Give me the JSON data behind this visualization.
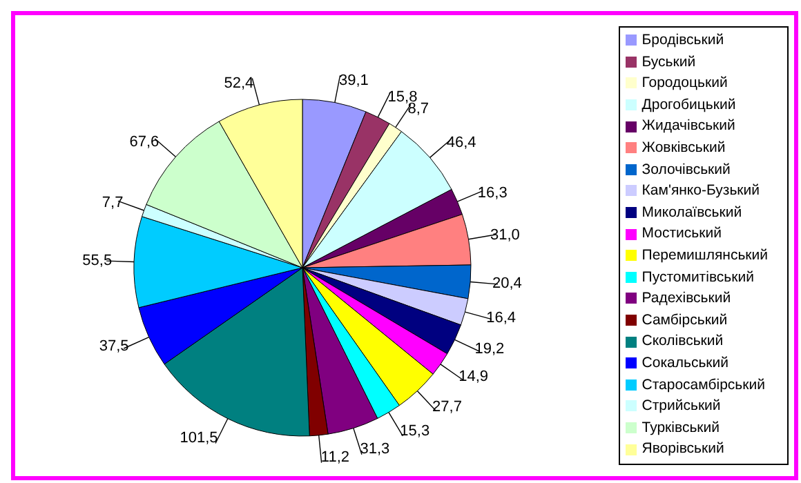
{
  "chart_data": {
    "type": "pie",
    "categories": [
      "Бродівський",
      "Буський",
      "Городоцький",
      "Дрогобицький",
      "Жидачівський",
      "Жовківський",
      "Золочівський",
      "Кам'янко-Бузький",
      "Миколаївський",
      "Мостиський",
      "Перемишлянський",
      "Пустомитівський",
      "Радехівський",
      "Самбірський",
      "Сколівський",
      "Сокальський",
      "Старосамбірський",
      "Стрийський",
      "Турківський",
      "Яворівський"
    ],
    "values": [
      39.1,
      15.8,
      8.7,
      46.4,
      16.3,
      31.0,
      20.4,
      16.4,
      19.2,
      14.9,
      27.7,
      15.3,
      31.3,
      11.2,
      101.5,
      37.5,
      55.5,
      7.7,
      67.6,
      52.4
    ],
    "value_labels": [
      "39,1",
      "15,8",
      "8,7",
      "46,4",
      "16,3",
      "31,0",
      "20,4",
      "16,4",
      "19,2",
      "14,9",
      "27,7",
      "15,3",
      "31,3",
      "11,2",
      "101,5",
      "37,5",
      "55,5",
      "7,7",
      "67,6",
      "52,4"
    ],
    "colors": [
      "#9999ff",
      "#993366",
      "#ffffcc",
      "#ccffff",
      "#660066",
      "#ff8080",
      "#0066cc",
      "#ccccff",
      "#000080",
      "#ff00ff",
      "#ffff00",
      "#00ffff",
      "#800080",
      "#800000",
      "#008080",
      "#0000ff",
      "#00ccff",
      "#ccffff",
      "#ccffcc",
      "#ffff99"
    ],
    "legend": "right"
  }
}
